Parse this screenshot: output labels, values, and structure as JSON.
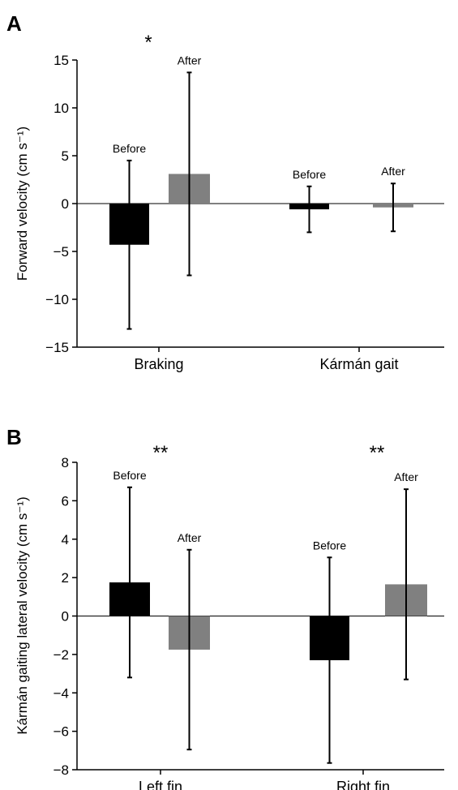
{
  "chart_data": [
    {
      "panel": "A",
      "type": "bar",
      "categories": [
        "Braking",
        "Kármán gait"
      ],
      "ylabel": "Forward velocity (cm s⁻¹)",
      "ylim": [
        -15,
        15
      ],
      "yticks": [
        -15,
        -10,
        -5,
        0,
        5,
        10,
        15
      ],
      "ytick_labels": [
        "−15",
        "−10",
        "−5",
        "0",
        "5",
        "10",
        "15"
      ],
      "series": [
        {
          "name": "Before",
          "color": "#000000",
          "values": [
            -4.3,
            -0.6
          ],
          "error": [
            8.8,
            2.4
          ]
        },
        {
          "name": "After",
          "color": "#808080",
          "values": [
            3.1,
            -0.4
          ],
          "error": [
            10.6,
            2.5
          ]
        }
      ],
      "bar_labels": [
        [
          "Before",
          "Before"
        ],
        [
          "After",
          "After"
        ]
      ],
      "significance": [
        "*",
        ""
      ]
    },
    {
      "panel": "B",
      "type": "bar",
      "categories": [
        "Left fin",
        "Right fin"
      ],
      "ylabel": "Kármán gaiting lateral velocity  (cm s⁻¹)",
      "ylim": [
        -8,
        8
      ],
      "yticks": [
        -8,
        -6,
        -4,
        -2,
        0,
        2,
        4,
        6,
        8
      ],
      "ytick_labels": [
        "−8",
        "−6",
        "−4",
        "−2",
        "0",
        "2",
        "4",
        "6",
        "8"
      ],
      "series": [
        {
          "name": "Before",
          "color": "#000000",
          "values": [
            1.75,
            -2.3
          ],
          "error": [
            4.95,
            5.35
          ]
        },
        {
          "name": "After",
          "color": "#808080",
          "values": [
            -1.75,
            1.65
          ],
          "error": [
            5.2,
            4.95
          ]
        }
      ],
      "bar_labels": [
        [
          "Before",
          "Before"
        ],
        [
          "After",
          "After"
        ]
      ],
      "significance": [
        "**",
        "**"
      ]
    }
  ]
}
